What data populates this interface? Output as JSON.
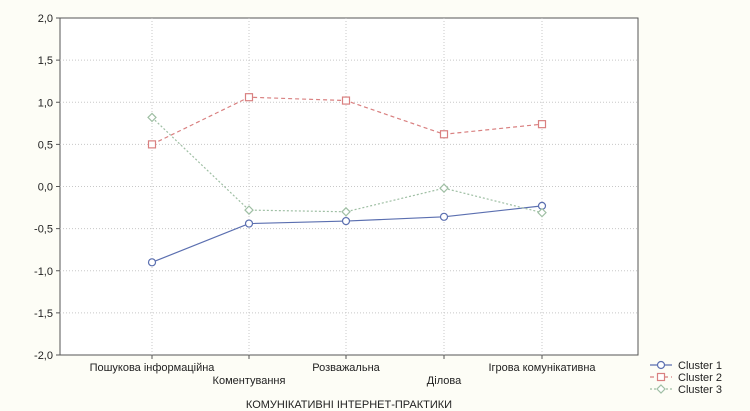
{
  "chart_data": {
    "type": "line",
    "title": "",
    "xlabel": "КОМУНІКАТИВНІ ІНТЕРНЕТ-ПРАКТИКИ",
    "ylabel": "",
    "categories": [
      "Пошукова інформаційна",
      "Коментування",
      "Розважальна",
      "Ділова",
      "Ігрова комунікативна"
    ],
    "ylim": [
      -2.0,
      2.0
    ],
    "yticks": [
      "2,0",
      "1,5",
      "1,0",
      "0,5",
      "0,0",
      "-0,5",
      "-1,0",
      "-1,5",
      "-2,0"
    ],
    "grid": true,
    "legend_position": "bottom-right",
    "series": [
      {
        "name": "Cluster  1",
        "marker": "circle",
        "line_style": "solid",
        "color": "#5b6fb0",
        "values": [
          -0.9,
          -0.44,
          -0.41,
          -0.36,
          -0.23
        ]
      },
      {
        "name": "Cluster  2",
        "marker": "square",
        "line_style": "dashed",
        "color": "#d98080",
        "values": [
          0.5,
          1.06,
          1.02,
          0.62,
          0.74
        ]
      },
      {
        "name": "Cluster  3",
        "marker": "diamond",
        "line_style": "dotted",
        "color": "#9fbfa4",
        "values": [
          0.82,
          -0.28,
          -0.3,
          -0.02,
          -0.31
        ]
      }
    ]
  }
}
